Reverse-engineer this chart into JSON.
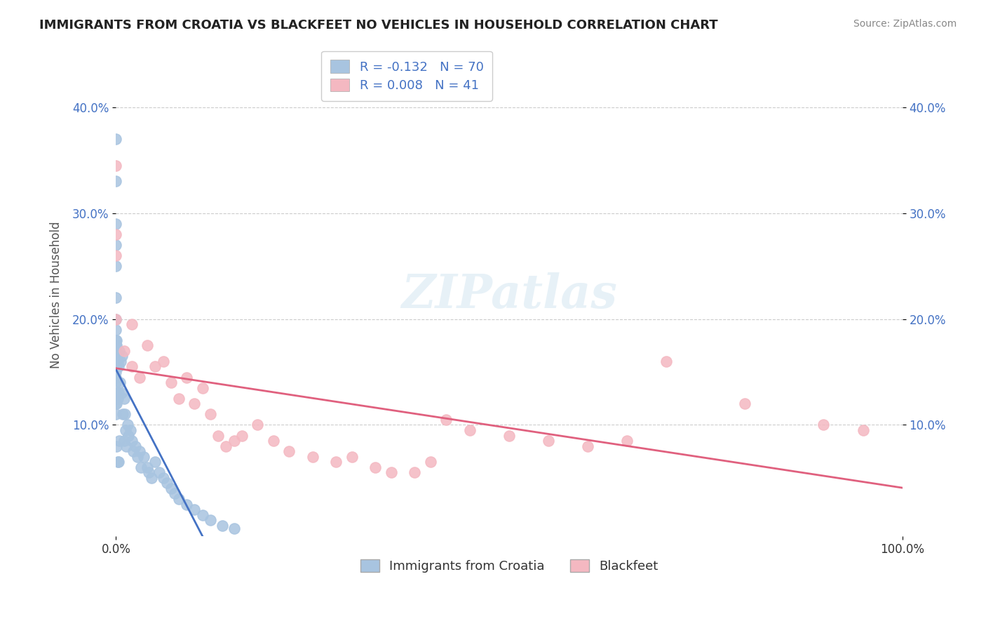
{
  "title": "IMMIGRANTS FROM CROATIA VS BLACKFEET NO VEHICLES IN HOUSEHOLD CORRELATION CHART",
  "source_text": "Source: ZipAtlas.com",
  "xlabel": "",
  "ylabel": "No Vehicles in Household",
  "xlim": [
    0.0,
    1.0
  ],
  "ylim": [
    -0.005,
    0.45
  ],
  "xtick_labels": [
    "0.0%",
    "100.0%"
  ],
  "xtick_positions": [
    0.0,
    1.0
  ],
  "ytick_labels": [
    "10.0%",
    "20.0%",
    "30.0%",
    "40.0%"
  ],
  "ytick_positions": [
    0.1,
    0.2,
    0.3,
    0.4
  ],
  "legend_r1": "R = -0.132   N = 70",
  "legend_r2": "R = 0.008   N = 41",
  "legend_label1": "Immigrants from Croatia",
  "legend_label2": "Blackfeet",
  "blue_color": "#a8c4e0",
  "pink_color": "#f4b8c1",
  "blue_line_color": "#4472c4",
  "pink_line_color": "#e0607e",
  "R1": -0.132,
  "N1": 70,
  "R2": 0.008,
  "N2": 41,
  "blue_scatter_x": [
    0.0,
    0.0,
    0.0,
    0.0,
    0.0,
    0.0,
    0.0,
    0.0,
    0.0,
    0.0,
    0.0,
    0.0,
    0.0,
    0.0,
    0.0,
    0.0,
    0.0,
    0.0,
    0.0,
    0.0,
    0.001,
    0.001,
    0.001,
    0.001,
    0.001,
    0.001,
    0.002,
    0.002,
    0.002,
    0.003,
    0.003,
    0.003,
    0.004,
    0.004,
    0.005,
    0.006,
    0.007,
    0.008,
    0.009,
    0.01,
    0.01,
    0.011,
    0.012,
    0.013,
    0.015,
    0.016,
    0.018,
    0.02,
    0.022,
    0.025,
    0.027,
    0.03,
    0.032,
    0.035,
    0.04,
    0.042,
    0.045,
    0.05,
    0.055,
    0.06,
    0.065,
    0.07,
    0.075,
    0.08,
    0.09,
    0.1,
    0.11,
    0.12,
    0.135,
    0.15
  ],
  "blue_scatter_y": [
    0.37,
    0.33,
    0.29,
    0.27,
    0.25,
    0.22,
    0.2,
    0.19,
    0.18,
    0.175,
    0.17,
    0.165,
    0.16,
    0.155,
    0.15,
    0.145,
    0.14,
    0.13,
    0.12,
    0.11,
    0.18,
    0.175,
    0.165,
    0.155,
    0.12,
    0.08,
    0.16,
    0.125,
    0.065,
    0.155,
    0.13,
    0.065,
    0.17,
    0.085,
    0.14,
    0.16,
    0.13,
    0.165,
    0.11,
    0.125,
    0.085,
    0.11,
    0.095,
    0.08,
    0.1,
    0.09,
    0.095,
    0.085,
    0.075,
    0.08,
    0.07,
    0.075,
    0.06,
    0.07,
    0.06,
    0.055,
    0.05,
    0.065,
    0.055,
    0.05,
    0.045,
    0.04,
    0.035,
    0.03,
    0.025,
    0.02,
    0.015,
    0.01,
    0.005,
    0.002
  ],
  "pink_scatter_x": [
    0.0,
    0.0,
    0.0,
    0.0,
    0.01,
    0.02,
    0.02,
    0.03,
    0.04,
    0.05,
    0.06,
    0.07,
    0.08,
    0.09,
    0.1,
    0.11,
    0.12,
    0.13,
    0.14,
    0.15,
    0.16,
    0.18,
    0.2,
    0.22,
    0.25,
    0.28,
    0.3,
    0.33,
    0.35,
    0.38,
    0.4,
    0.42,
    0.45,
    0.5,
    0.55,
    0.6,
    0.65,
    0.7,
    0.8,
    0.9,
    0.95
  ],
  "pink_scatter_y": [
    0.345,
    0.28,
    0.26,
    0.2,
    0.17,
    0.195,
    0.155,
    0.145,
    0.175,
    0.155,
    0.16,
    0.14,
    0.125,
    0.145,
    0.12,
    0.135,
    0.11,
    0.09,
    0.08,
    0.085,
    0.09,
    0.1,
    0.085,
    0.075,
    0.07,
    0.065,
    0.07,
    0.06,
    0.055,
    0.055,
    0.065,
    0.105,
    0.095,
    0.09,
    0.085,
    0.08,
    0.085,
    0.16,
    0.12,
    0.1,
    0.095
  ],
  "watermark": "ZIPatlas",
  "background_color": "#ffffff",
  "grid_color": "#cccccc"
}
